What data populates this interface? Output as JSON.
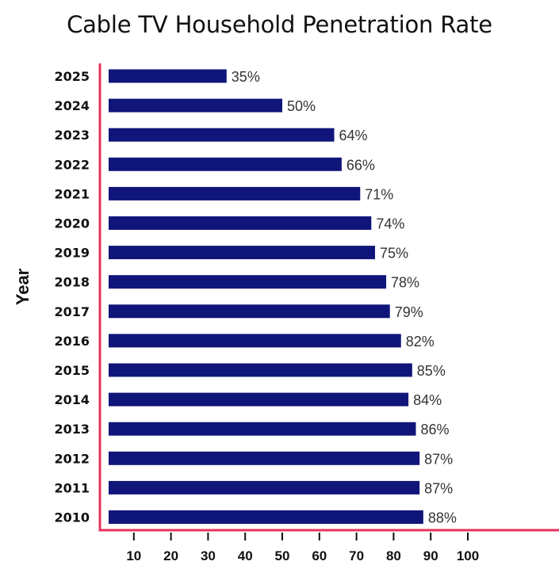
{
  "chart_data": {
    "type": "bar",
    "orientation": "horizontal",
    "title": "Cable TV Household Penetration Rate",
    "xlabel": "",
    "ylabel": "Year",
    "categories": [
      "2025",
      "2024",
      "2023",
      "2022",
      "2021",
      "2020",
      "2019",
      "2018",
      "2017",
      "2016",
      "2015",
      "2014",
      "2013",
      "2012",
      "2011",
      "2010"
    ],
    "values": [
      35,
      50,
      64,
      66,
      71,
      74,
      75,
      78,
      79,
      82,
      85,
      84,
      86,
      87,
      87,
      88
    ],
    "data_labels": [
      "35%",
      "50%",
      "64%",
      "66%",
      "71%",
      "74%",
      "75%",
      "78%",
      "79%",
      "82%",
      "85%",
      "84%",
      "86%",
      "87%",
      "87%",
      "88%"
    ],
    "xticks": [
      10,
      20,
      30,
      40,
      50,
      60,
      70,
      80,
      90,
      100
    ],
    "xlim": [
      0,
      100
    ],
    "grid": false,
    "legend": "none",
    "colors": {
      "bar": "#10157a",
      "axis": "#e8325a",
      "text": "#111111",
      "label": "#333333"
    }
  }
}
